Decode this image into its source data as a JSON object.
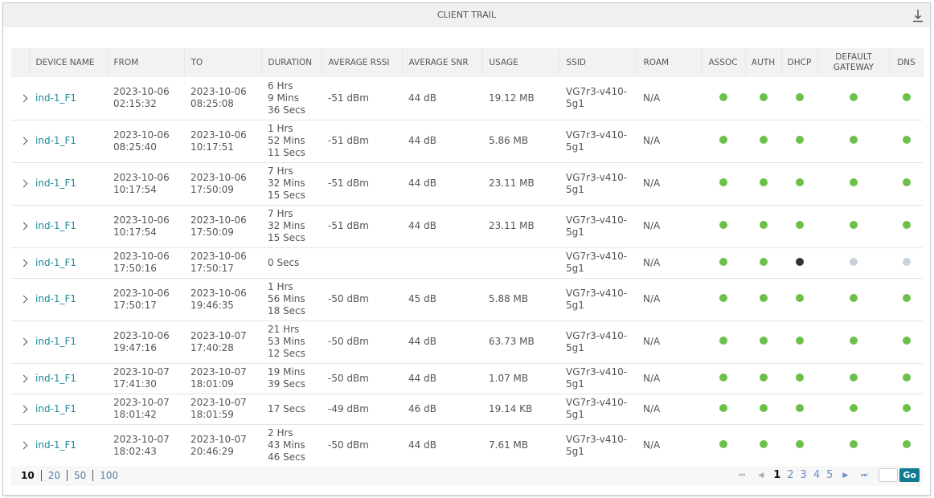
{
  "title": "CLIENT TRAIL",
  "columns": [
    "",
    "DEVICE NAME",
    "FROM",
    "TO",
    "DURATION",
    "AVERAGE RSSI",
    "AVERAGE SNR",
    "USAGE",
    "SSID",
    "ROAM",
    "ASSOC",
    "AUTH",
    "DHCP",
    "DEFAULT GATEWAY",
    "DNS"
  ],
  "colors": {
    "ok": "#6cc04a",
    "fail": "#333333",
    "na": "#c8d2dc"
  },
  "rows": [
    {
      "device": "ind-1_F1",
      "from": [
        "2023-10-06",
        "02:15:32"
      ],
      "to": [
        "2023-10-06",
        "08:25:08"
      ],
      "duration": [
        "6 Hrs",
        "9 Mins",
        "36 Secs"
      ],
      "rssi": "-51 dBm",
      "snr": "44 dB",
      "usage": "19.12 MB",
      "ssid": [
        "VG7r3-v410-",
        "5g1"
      ],
      "roam": "N/A",
      "status": [
        "ok",
        "ok",
        "ok",
        "ok",
        "ok"
      ]
    },
    {
      "device": "ind-1_F1",
      "from": [
        "2023-10-06",
        "08:25:40"
      ],
      "to": [
        "2023-10-06",
        "10:17:51"
      ],
      "duration": [
        "1 Hrs",
        "52 Mins",
        "11 Secs"
      ],
      "rssi": "-51 dBm",
      "snr": "44 dB",
      "usage": "5.86 MB",
      "ssid": [
        "VG7r3-v410-",
        "5g1"
      ],
      "roam": "N/A",
      "status": [
        "ok",
        "ok",
        "ok",
        "ok",
        "ok"
      ]
    },
    {
      "device": "ind-1_F1",
      "from": [
        "2023-10-06",
        "10:17:54"
      ],
      "to": [
        "2023-10-06",
        "17:50:09"
      ],
      "duration": [
        "7 Hrs",
        "32 Mins",
        "15 Secs"
      ],
      "rssi": "-51 dBm",
      "snr": "44 dB",
      "usage": "23.11 MB",
      "ssid": [
        "VG7r3-v410-",
        "5g1"
      ],
      "roam": "N/A",
      "status": [
        "ok",
        "ok",
        "ok",
        "ok",
        "ok"
      ]
    },
    {
      "device": "ind-1_F1",
      "from": [
        "2023-10-06",
        "10:17:54"
      ],
      "to": [
        "2023-10-06",
        "17:50:09"
      ],
      "duration": [
        "7 Hrs",
        "32 Mins",
        "15 Secs"
      ],
      "rssi": "-51 dBm",
      "snr": "44 dB",
      "usage": "23.11 MB",
      "ssid": [
        "VG7r3-v410-",
        "5g1"
      ],
      "roam": "N/A",
      "status": [
        "ok",
        "ok",
        "ok",
        "ok",
        "ok"
      ]
    },
    {
      "device": "ind-1_F1",
      "from": [
        "2023-10-06",
        "17:50:16"
      ],
      "to": [
        "2023-10-06",
        "17:50:17"
      ],
      "duration": [
        "0 Secs"
      ],
      "rssi": "",
      "snr": "",
      "usage": "",
      "ssid": [
        "VG7r3-v410-",
        "5g1"
      ],
      "roam": "N/A",
      "status": [
        "ok",
        "ok",
        "fail",
        "na",
        "na"
      ]
    },
    {
      "device": "ind-1_F1",
      "from": [
        "2023-10-06",
        "17:50:17"
      ],
      "to": [
        "2023-10-06",
        "19:46:35"
      ],
      "duration": [
        "1 Hrs",
        "56 Mins",
        "18 Secs"
      ],
      "rssi": "-50 dBm",
      "snr": "45 dB",
      "usage": "5.88 MB",
      "ssid": [
        "VG7r3-v410-",
        "5g1"
      ],
      "roam": "N/A",
      "status": [
        "ok",
        "ok",
        "ok",
        "ok",
        "ok"
      ]
    },
    {
      "device": "ind-1_F1",
      "from": [
        "2023-10-06",
        "19:47:16"
      ],
      "to": [
        "2023-10-07",
        "17:40:28"
      ],
      "duration": [
        "21 Hrs",
        "53 Mins",
        "12 Secs"
      ],
      "rssi": "-50 dBm",
      "snr": "44 dB",
      "usage": "63.73 MB",
      "ssid": [
        "VG7r3-v410-",
        "5g1"
      ],
      "roam": "N/A",
      "status": [
        "ok",
        "ok",
        "ok",
        "ok",
        "ok"
      ]
    },
    {
      "device": "ind-1_F1",
      "from": [
        "2023-10-07",
        "17:41:30"
      ],
      "to": [
        "2023-10-07",
        "18:01:09"
      ],
      "duration": [
        "19 Mins",
        "39 Secs"
      ],
      "rssi": "-50 dBm",
      "snr": "44 dB",
      "usage": "1.07 MB",
      "ssid": [
        "VG7r3-v410-",
        "5g1"
      ],
      "roam": "N/A",
      "status": [
        "ok",
        "ok",
        "ok",
        "ok",
        "ok"
      ]
    },
    {
      "device": "ind-1_F1",
      "from": [
        "2023-10-07",
        "18:01:42"
      ],
      "to": [
        "2023-10-07",
        "18:01:59"
      ],
      "duration": [
        "17 Secs"
      ],
      "rssi": "-49 dBm",
      "snr": "46 dB",
      "usage": "19.14 KB",
      "ssid": [
        "VG7r3-v410-",
        "5g1"
      ],
      "roam": "N/A",
      "status": [
        "ok",
        "ok",
        "ok",
        "ok",
        "ok"
      ]
    },
    {
      "device": "ind-1_F1",
      "from": [
        "2023-10-07",
        "18:02:43"
      ],
      "to": [
        "2023-10-07",
        "20:46:29"
      ],
      "duration": [
        "2 Hrs",
        "43 Mins",
        "46 Secs"
      ],
      "rssi": "-50 dBm",
      "snr": "44 dB",
      "usage": "7.61 MB",
      "ssid": [
        "VG7r3-v410-",
        "5g1"
      ],
      "roam": "N/A",
      "status": [
        "ok",
        "ok",
        "ok",
        "ok",
        "ok"
      ]
    }
  ],
  "footer": {
    "page_sizes": [
      "10",
      "20",
      "50",
      "100"
    ],
    "selected_page_size": "10",
    "pages": [
      "1",
      "2",
      "3",
      "4",
      "5"
    ],
    "current_page": "1",
    "go_label": "Go"
  }
}
